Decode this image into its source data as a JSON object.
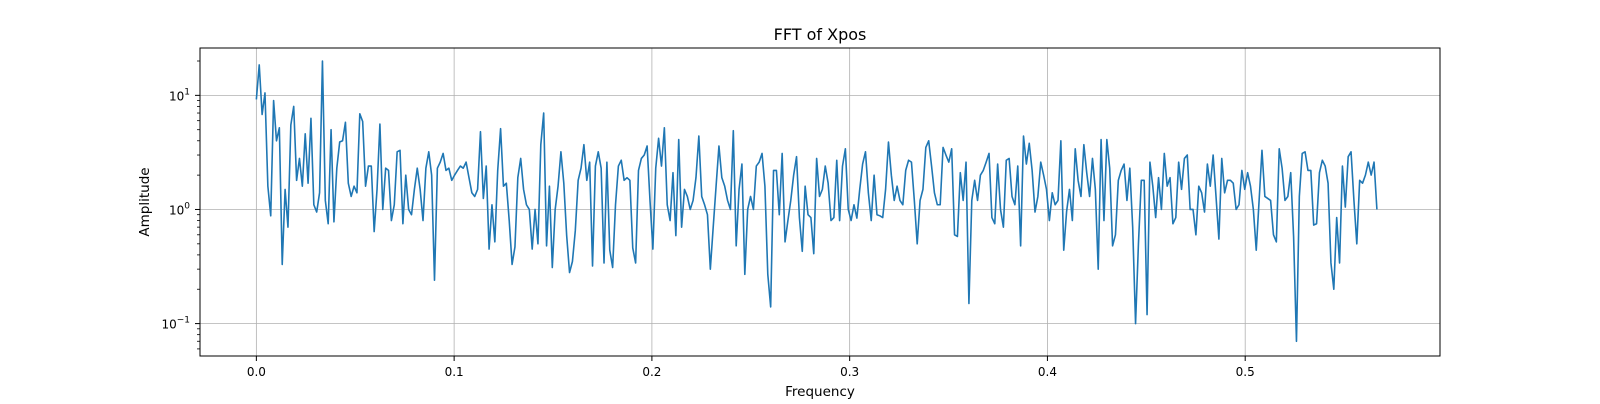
{
  "chart_data": {
    "type": "line",
    "title": "FFT of Xpos",
    "xlabel": "Frequency",
    "ylabel": "Amplitude",
    "xlim": [
      -0.0285,
      0.5985
    ],
    "ylim": [
      0.052,
      26
    ],
    "yscale": "log",
    "grid": true,
    "x_ticks": [
      0.0,
      0.1,
      0.2,
      0.3,
      0.4,
      0.5
    ],
    "x_tick_labels": [
      "0.0",
      "0.1",
      "0.2",
      "0.3",
      "0.4",
      "0.5"
    ],
    "y_ticks": [
      0.1,
      1,
      10
    ],
    "y_tick_labels": [
      {
        "base": "10",
        "exp": "−1"
      },
      {
        "base": "10",
        "exp": "0"
      },
      {
        "base": "10",
        "exp": "1"
      }
    ],
    "line_color": "#1f77b4",
    "x_start": 0.0,
    "x_end": 0.5666,
    "series": [
      {
        "values": [
          9.2,
          18.5,
          6.8,
          10.5,
          1.6,
          0.88,
          9.0,
          4.0,
          5.2,
          0.33,
          1.5,
          0.7,
          5.5,
          8.0,
          1.8,
          2.8,
          1.6,
          4.6,
          1.7,
          6.3,
          1.1,
          0.95,
          1.4,
          20.0,
          1.2,
          0.75,
          5.0,
          0.78,
          2.3,
          3.9,
          4.0,
          5.8,
          1.7,
          1.3,
          1.6,
          1.4,
          6.9,
          5.9,
          1.6,
          2.4,
          2.4,
          0.64,
          1.5,
          5.6,
          1.0,
          2.3,
          2.2,
          0.8,
          1.1,
          3.2,
          3.3,
          0.75,
          2.0,
          1.0,
          0.9,
          1.5,
          2.3,
          1.5,
          0.8,
          2.3,
          3.2,
          2.0,
          0.24,
          2.3,
          2.6,
          3.1,
          2.2,
          2.3,
          1.8,
          2.0,
          2.2,
          2.4,
          2.3,
          2.6,
          1.9,
          1.4,
          1.3,
          1.5,
          4.8,
          1.25,
          2.4,
          0.45,
          1.1,
          0.52,
          2.2,
          5.1,
          1.6,
          1.7,
          0.8,
          0.33,
          0.47,
          1.9,
          2.8,
          1.5,
          1.1,
          1.0,
          0.45,
          1.0,
          0.5,
          3.7,
          7.0,
          0.48,
          1.6,
          0.31,
          1.0,
          1.6,
          3.2,
          1.7,
          0.59,
          0.28,
          0.35,
          0.65,
          1.8,
          2.3,
          3.7,
          1.8,
          2.6,
          0.32,
          2.4,
          3.2,
          2.3,
          0.34,
          2.6,
          0.44,
          0.31,
          1.1,
          2.4,
          2.7,
          1.8,
          1.9,
          1.8,
          0.46,
          0.34,
          2.2,
          2.8,
          3.0,
          3.6,
          1.2,
          0.45,
          2.3,
          4.2,
          2.4,
          5.2,
          1.1,
          0.8,
          2.1,
          0.59,
          4.1,
          0.7,
          1.5,
          1.3,
          1.0,
          1.2,
          1.9,
          4.4,
          1.3,
          1.1,
          0.9,
          0.3,
          0.7,
          1.6,
          3.6,
          1.9,
          1.6,
          1.2,
          1.0,
          4.9,
          0.48,
          1.5,
          2.5,
          0.27,
          1.0,
          1.3,
          1.0,
          2.4,
          2.6,
          3.1,
          1.6,
          0.27,
          0.14,
          2.2,
          2.2,
          0.9,
          3.1,
          0.52,
          0.8,
          1.2,
          2.0,
          2.9,
          0.85,
          0.43,
          1.6,
          0.9,
          0.85,
          0.41,
          2.8,
          1.3,
          1.5,
          2.4,
          1.7,
          0.8,
          0.85,
          2.7,
          0.8,
          2.4,
          3.4,
          1.0,
          0.8,
          1.1,
          0.84,
          1.5,
          2.5,
          3.2,
          1.4,
          0.8,
          2.0,
          0.9,
          0.88,
          0.85,
          1.5,
          3.9,
          2.0,
          1.2,
          1.6,
          1.2,
          1.1,
          2.2,
          2.7,
          2.6,
          1.2,
          0.5,
          1.2,
          1.5,
          3.5,
          4.0,
          2.4,
          1.4,
          1.1,
          1.1,
          3.5,
          3.0,
          2.6,
          3.4,
          0.6,
          0.58,
          2.1,
          1.2,
          2.6,
          0.15,
          1.2,
          1.8,
          1.2,
          2.0,
          2.2,
          2.6,
          3.1,
          0.85,
          0.75,
          2.5,
          1.0,
          0.7,
          2.7,
          2.8,
          1.3,
          1.1,
          2.4,
          0.48,
          4.4,
          2.5,
          3.8,
          2.2,
          0.95,
          1.3,
          2.6,
          2.0,
          1.5,
          0.8,
          1.4,
          1.1,
          1.2,
          4.0,
          0.44,
          0.96,
          1.5,
          0.8,
          3.4,
          1.8,
          1.3,
          3.7,
          2.1,
          1.3,
          2.8,
          1.5,
          0.3,
          4.1,
          0.8,
          4.1,
          2.3,
          0.48,
          0.6,
          1.8,
          2.2,
          2.5,
          1.2,
          2.3,
          0.7,
          0.1,
          0.5,
          1.8,
          1.8,
          0.12,
          2.6,
          1.6,
          0.85,
          1.9,
          1.0,
          3.1,
          1.6,
          1.9,
          0.75,
          0.85,
          2.6,
          1.5,
          2.8,
          3.0,
          1.0,
          1.0,
          0.6,
          1.6,
          1.4,
          0.95,
          2.5,
          1.6,
          3.0,
          1.3,
          0.55,
          2.8,
          1.4,
          1.8,
          1.8,
          1.7,
          1.0,
          1.1,
          2.2,
          1.5,
          2.1,
          1.6,
          1.0,
          0.44,
          1.2,
          3.3,
          1.3,
          1.25,
          1.2,
          0.6,
          0.52,
          3.4,
          2.3,
          1.2,
          1.3,
          2.1,
          0.58,
          0.07,
          1.3,
          3.1,
          3.2,
          2.2,
          2.2,
          0.73,
          0.75,
          2.1,
          2.7,
          2.4,
          1.7,
          0.34,
          0.2,
          0.85,
          0.34,
          2.4,
          1.05,
          2.9,
          3.2,
          1.2,
          0.5,
          1.8,
          1.7,
          2.0,
          2.6,
          2.0,
          2.6,
          1.0
        ]
      }
    ]
  }
}
